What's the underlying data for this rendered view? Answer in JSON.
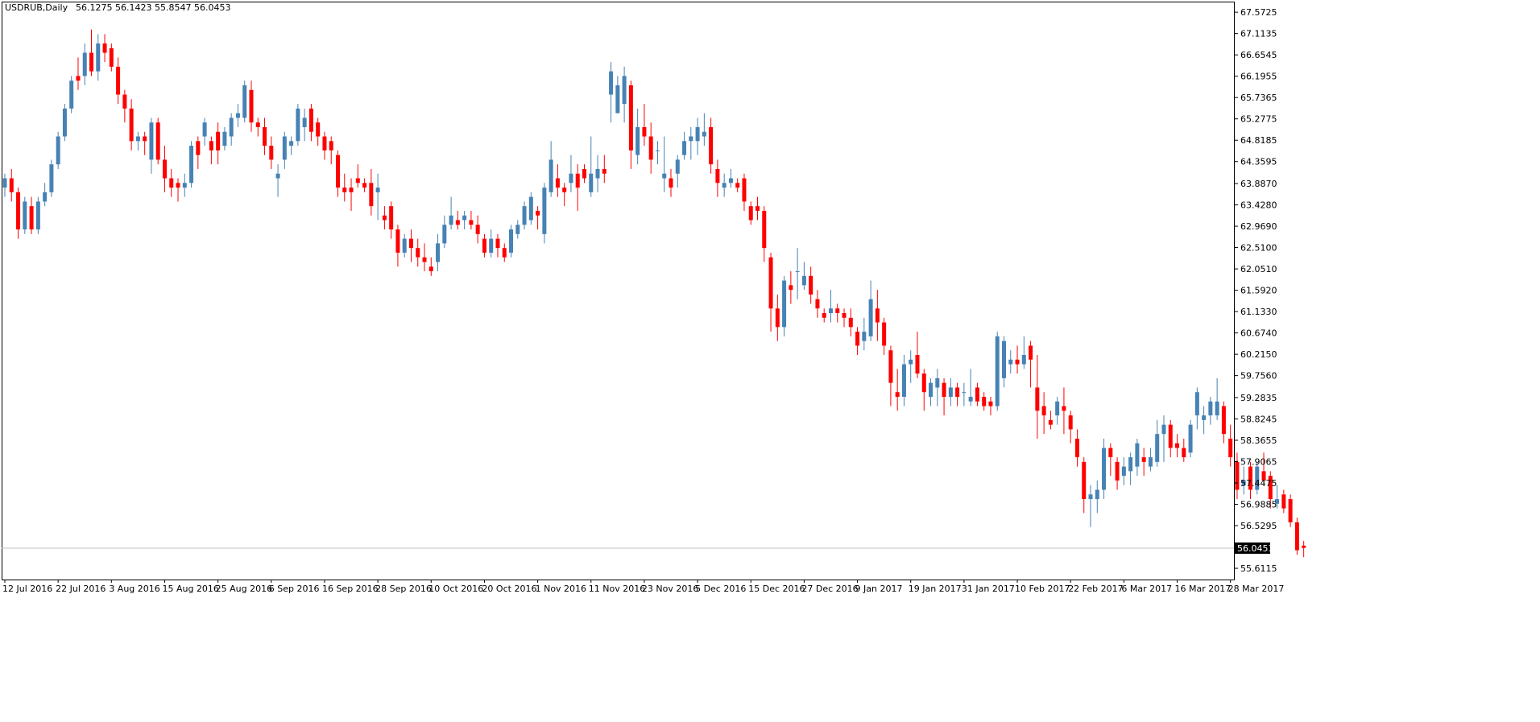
{
  "header": {
    "symbol": "USDRUB,Daily",
    "ohlc": "56.1275 56.1423 55.8547 56.0453"
  },
  "colors": {
    "bull": "#4682b4",
    "bear": "#ff0000",
    "axis": "#000000",
    "current_line": "#c0c0c0",
    "background": "#ffffff"
  },
  "chart_data": {
    "type": "candlestick",
    "title": "USDRUB,Daily",
    "ylim": [
      55.37,
      67.8
    ],
    "y_ticks": [
      "67.5725",
      "67.1135",
      "66.6545",
      "66.1955",
      "65.7365",
      "65.2775",
      "64.8185",
      "64.3595",
      "63.8870",
      "63.4280",
      "62.9690",
      "62.5100",
      "62.0510",
      "61.5920",
      "61.1330",
      "60.6740",
      "60.2150",
      "59.7560",
      "59.2835",
      "58.8245",
      "58.3655",
      "57.9065",
      "57.4475",
      "56.9885",
      "56.5295",
      "56.0453",
      "55.6115"
    ],
    "current_price": "56.0453",
    "x_labels": [
      {
        "index": 0,
        "label": "12 Jul 2016"
      },
      {
        "index": 8,
        "label": "22 Jul 2016"
      },
      {
        "index": 16,
        "label": "3 Aug 2016"
      },
      {
        "index": 24,
        "label": "15 Aug 2016"
      },
      {
        "index": 32,
        "label": "25 Aug 2016"
      },
      {
        "index": 40,
        "label": "6 Sep 2016"
      },
      {
        "index": 48,
        "label": "16 Sep 2016"
      },
      {
        "index": 56,
        "label": "28 Sep 2016"
      },
      {
        "index": 64,
        "label": "10 Oct 2016"
      },
      {
        "index": 72,
        "label": "20 Oct 2016"
      },
      {
        "index": 80,
        "label": "1 Nov 2016"
      },
      {
        "index": 88,
        "label": "11 Nov 2016"
      },
      {
        "index": 96,
        "label": "23 Nov 2016"
      },
      {
        "index": 104,
        "label": "5 Dec 2016"
      },
      {
        "index": 112,
        "label": "15 Dec 2016"
      },
      {
        "index": 120,
        "label": "27 Dec 2016"
      },
      {
        "index": 128,
        "label": "9 Jan 2017"
      },
      {
        "index": 136,
        "label": "19 Jan 2017"
      },
      {
        "index": 144,
        "label": "31 Jan 2017"
      },
      {
        "index": 152,
        "label": "10 Feb 2017"
      },
      {
        "index": 160,
        "label": "22 Feb 2017"
      },
      {
        "index": 168,
        "label": "6 Mar 2017"
      },
      {
        "index": 176,
        "label": "16 Mar 2017"
      },
      {
        "index": 184,
        "label": "28 Mar 2017"
      }
    ],
    "candles": [
      [
        63.8,
        64.1,
        63.6,
        64.0
      ],
      [
        64.0,
        64.2,
        63.5,
        63.7
      ],
      [
        63.7,
        63.8,
        62.7,
        62.9
      ],
      [
        62.9,
        63.6,
        62.8,
        63.5
      ],
      [
        63.4,
        63.6,
        62.8,
        62.9
      ],
      [
        62.9,
        63.6,
        62.8,
        63.5
      ],
      [
        63.5,
        63.9,
        63.4,
        63.7
      ],
      [
        63.7,
        64.4,
        63.6,
        64.3
      ],
      [
        64.3,
        65.0,
        64.2,
        64.9
      ],
      [
        64.9,
        65.6,
        64.8,
        65.5
      ],
      [
        65.5,
        66.2,
        65.4,
        66.1
      ],
      [
        66.2,
        66.6,
        65.9,
        66.1
      ],
      [
        66.2,
        66.9,
        66.0,
        66.7
      ],
      [
        66.7,
        67.2,
        66.2,
        66.3
      ],
      [
        66.3,
        67.1,
        66.1,
        66.9
      ],
      [
        66.9,
        67.1,
        66.5,
        66.7
      ],
      [
        66.8,
        66.9,
        66.3,
        66.4
      ],
      [
        66.4,
        66.6,
        65.6,
        65.8
      ],
      [
        65.8,
        65.9,
        65.2,
        65.5
      ],
      [
        65.5,
        65.7,
        64.6,
        64.8
      ],
      [
        64.8,
        65.0,
        64.6,
        64.9
      ],
      [
        64.9,
        65.0,
        64.5,
        64.8
      ],
      [
        64.4,
        65.3,
        64.1,
        65.2
      ],
      [
        65.2,
        65.3,
        64.3,
        64.4
      ],
      [
        64.4,
        64.7,
        63.7,
        64.0
      ],
      [
        64.0,
        64.2,
        63.6,
        63.8
      ],
      [
        63.9,
        64.0,
        63.5,
        63.8
      ],
      [
        63.8,
        64.1,
        63.6,
        63.9
      ],
      [
        63.9,
        64.8,
        63.8,
        64.7
      ],
      [
        64.8,
        64.9,
        64.2,
        64.5
      ],
      [
        64.9,
        65.3,
        64.7,
        65.2
      ],
      [
        64.8,
        64.9,
        64.3,
        64.6
      ],
      [
        65.0,
        65.2,
        64.3,
        64.6
      ],
      [
        64.7,
        65.1,
        64.6,
        65.0
      ],
      [
        64.9,
        65.4,
        64.7,
        65.3
      ],
      [
        65.3,
        65.6,
        65.1,
        65.4
      ],
      [
        65.3,
        66.1,
        65.2,
        66.0
      ],
      [
        65.9,
        66.1,
        65.0,
        65.2
      ],
      [
        65.2,
        65.3,
        64.9,
        65.1
      ],
      [
        65.1,
        65.3,
        64.5,
        64.7
      ],
      [
        64.7,
        64.9,
        64.2,
        64.4
      ],
      [
        64.0,
        64.3,
        63.6,
        64.1
      ],
      [
        64.4,
        65.0,
        64.2,
        64.9
      ],
      [
        64.7,
        64.9,
        64.5,
        64.8
      ],
      [
        64.8,
        65.6,
        64.7,
        65.5
      ],
      [
        65.1,
        65.5,
        64.8,
        65.3
      ],
      [
        65.5,
        65.6,
        64.8,
        65.0
      ],
      [
        65.2,
        65.3,
        64.7,
        64.9
      ],
      [
        64.9,
        65.0,
        64.4,
        64.6
      ],
      [
        64.8,
        64.9,
        64.3,
        64.6
      ],
      [
        64.5,
        64.6,
        63.6,
        63.8
      ],
      [
        63.8,
        64.1,
        63.5,
        63.7
      ],
      [
        63.8,
        64.0,
        63.3,
        63.7
      ],
      [
        64.0,
        64.3,
        63.8,
        63.9
      ],
      [
        63.9,
        64.0,
        63.7,
        63.8
      ],
      [
        63.9,
        64.2,
        63.2,
        63.4
      ],
      [
        63.7,
        64.1,
        63.1,
        63.8
      ],
      [
        63.2,
        63.4,
        62.9,
        63.1
      ],
      [
        63.4,
        63.5,
        62.7,
        62.9
      ],
      [
        62.9,
        63.0,
        62.1,
        62.4
      ],
      [
        62.4,
        62.8,
        62.3,
        62.7
      ],
      [
        62.7,
        62.9,
        62.2,
        62.5
      ],
      [
        62.5,
        62.7,
        62.1,
        62.3
      ],
      [
        62.3,
        62.6,
        62.0,
        62.2
      ],
      [
        62.1,
        62.3,
        61.9,
        62.0
      ],
      [
        62.2,
        62.8,
        62.0,
        62.6
      ],
      [
        62.6,
        63.2,
        62.5,
        63.0
      ],
      [
        63.0,
        63.6,
        62.9,
        63.2
      ],
      [
        63.1,
        63.3,
        62.9,
        63.0
      ],
      [
        63.1,
        63.3,
        62.9,
        63.2
      ],
      [
        63.1,
        63.3,
        62.9,
        63.0
      ],
      [
        63.0,
        63.2,
        62.6,
        62.8
      ],
      [
        62.7,
        62.8,
        62.3,
        62.4
      ],
      [
        62.4,
        62.9,
        62.3,
        62.7
      ],
      [
        62.7,
        62.8,
        62.3,
        62.5
      ],
      [
        62.5,
        62.6,
        62.2,
        62.3
      ],
      [
        62.4,
        63.0,
        62.3,
        62.9
      ],
      [
        62.8,
        63.1,
        62.7,
        63.0
      ],
      [
        63.0,
        63.5,
        62.9,
        63.4
      ],
      [
        63.1,
        63.7,
        63.0,
        63.6
      ],
      [
        63.3,
        63.4,
        62.9,
        63.2
      ],
      [
        62.8,
        63.9,
        62.6,
        63.8
      ],
      [
        63.7,
        64.8,
        63.6,
        64.4
      ],
      [
        64.0,
        64.3,
        63.6,
        63.8
      ],
      [
        63.8,
        63.9,
        63.4,
        63.7
      ],
      [
        63.9,
        64.5,
        63.7,
        64.1
      ],
      [
        64.1,
        64.3,
        63.3,
        63.8
      ],
      [
        64.2,
        64.3,
        63.9,
        64.0
      ],
      [
        63.7,
        64.9,
        63.6,
        64.1
      ],
      [
        64.0,
        64.5,
        63.7,
        64.2
      ],
      [
        64.2,
        64.5,
        63.9,
        64.1
      ],
      [
        65.8,
        66.5,
        65.2,
        66.3
      ],
      [
        65.4,
        66.2,
        65.4,
        66.0
      ],
      [
        65.6,
        66.4,
        65.2,
        66.2
      ],
      [
        66.0,
        66.1,
        64.2,
        64.6
      ],
      [
        64.5,
        65.5,
        64.3,
        65.1
      ],
      [
        65.1,
        65.6,
        64.7,
        64.9
      ],
      [
        64.9,
        65.2,
        64.1,
        64.4
      ],
      [
        64.6,
        64.8,
        64.3,
        64.6
      ],
      [
        64.0,
        64.9,
        63.7,
        64.1
      ],
      [
        64.0,
        64.2,
        63.6,
        63.8
      ],
      [
        64.1,
        64.5,
        63.8,
        64.4
      ],
      [
        64.5,
        65.0,
        64.4,
        64.8
      ],
      [
        64.8,
        65.1,
        64.4,
        64.9
      ],
      [
        64.8,
        65.3,
        64.5,
        65.1
      ],
      [
        64.9,
        65.4,
        64.7,
        65.0
      ],
      [
        65.1,
        65.3,
        64.1,
        64.3
      ],
      [
        64.2,
        64.4,
        63.6,
        63.9
      ],
      [
        63.8,
        64.1,
        63.6,
        63.9
      ],
      [
        63.9,
        64.2,
        63.8,
        64.0
      ],
      [
        63.9,
        64.0,
        63.7,
        63.8
      ],
      [
        64.0,
        64.1,
        63.3,
        63.5
      ],
      [
        63.4,
        63.5,
        63.0,
        63.1
      ],
      [
        63.4,
        63.6,
        63.1,
        63.3
      ],
      [
        63.3,
        63.4,
        62.2,
        62.5
      ],
      [
        62.3,
        62.4,
        60.7,
        61.2
      ],
      [
        61.2,
        61.5,
        60.5,
        60.8
      ],
      [
        60.8,
        61.9,
        60.6,
        61.8
      ],
      [
        61.7,
        62.0,
        61.3,
        61.6
      ],
      [
        62.0,
        62.5,
        61.4,
        62.0
      ],
      [
        61.7,
        62.2,
        61.6,
        61.9
      ],
      [
        61.9,
        62.1,
        61.3,
        61.5
      ],
      [
        61.4,
        61.6,
        61.0,
        61.2
      ],
      [
        61.1,
        61.2,
        60.9,
        61.0
      ],
      [
        61.1,
        61.6,
        60.9,
        61.2
      ],
      [
        61.2,
        61.3,
        60.9,
        61.1
      ],
      [
        61.1,
        61.2,
        60.8,
        61.0
      ],
      [
        61.0,
        61.2,
        60.6,
        60.8
      ],
      [
        60.7,
        60.8,
        60.2,
        60.4
      ],
      [
        60.5,
        61.0,
        60.3,
        60.7
      ],
      [
        60.6,
        61.8,
        60.5,
        61.4
      ],
      [
        61.2,
        61.6,
        60.5,
        60.9
      ],
      [
        60.9,
        61.0,
        60.2,
        60.4
      ],
      [
        60.3,
        60.4,
        59.1,
        59.6
      ],
      [
        59.4,
        59.9,
        59.0,
        59.3
      ],
      [
        59.3,
        60.2,
        59.1,
        60.0
      ],
      [
        60.0,
        60.3,
        59.6,
        60.1
      ],
      [
        60.2,
        60.7,
        59.7,
        59.8
      ],
      [
        59.8,
        59.9,
        59.0,
        59.4
      ],
      [
        59.3,
        59.7,
        59.1,
        59.6
      ],
      [
        59.5,
        59.9,
        59.1,
        59.7
      ],
      [
        59.6,
        59.7,
        58.9,
        59.3
      ],
      [
        59.3,
        59.7,
        59.1,
        59.5
      ],
      [
        59.5,
        59.6,
        59.1,
        59.3
      ],
      [
        59.4,
        59.6,
        59.1,
        59.4
      ],
      [
        59.2,
        59.9,
        59.1,
        59.3
      ],
      [
        59.5,
        59.6,
        59.1,
        59.2
      ],
      [
        59.3,
        59.4,
        59.0,
        59.1
      ],
      [
        59.2,
        59.3,
        58.9,
        59.1
      ],
      [
        59.1,
        60.7,
        59.0,
        60.6
      ],
      [
        59.7,
        60.6,
        59.5,
        60.5
      ],
      [
        60.0,
        60.3,
        59.8,
        60.1
      ],
      [
        60.1,
        60.4,
        59.8,
        60.0
      ],
      [
        60.0,
        60.6,
        59.9,
        60.2
      ],
      [
        60.4,
        60.5,
        59.5,
        60.1
      ],
      [
        59.5,
        60.2,
        58.4,
        59.0
      ],
      [
        59.1,
        59.4,
        58.5,
        58.9
      ],
      [
        58.8,
        59.0,
        58.6,
        58.7
      ],
      [
        58.9,
        59.3,
        58.7,
        59.2
      ],
      [
        59.1,
        59.5,
        58.5,
        59.0
      ],
      [
        58.9,
        59.0,
        58.3,
        58.6
      ],
      [
        58.4,
        58.6,
        57.8,
        58.0
      ],
      [
        57.9,
        58.0,
        56.8,
        57.1
      ],
      [
        57.1,
        57.4,
        56.5,
        57.2
      ],
      [
        57.1,
        57.5,
        56.8,
        57.3
      ],
      [
        57.3,
        58.4,
        57.1,
        58.2
      ],
      [
        58.2,
        58.3,
        57.6,
        58.0
      ],
      [
        57.9,
        58.0,
        57.3,
        57.5
      ],
      [
        57.6,
        58.0,
        57.4,
        57.8
      ],
      [
        57.7,
        58.1,
        57.4,
        58.0
      ],
      [
        57.8,
        58.4,
        57.6,
        58.3
      ],
      [
        58.0,
        58.2,
        57.6,
        57.9
      ],
      [
        57.8,
        58.2,
        57.7,
        58.0
      ],
      [
        57.9,
        58.8,
        57.8,
        58.5
      ],
      [
        58.5,
        58.9,
        57.9,
        58.7
      ],
      [
        58.7,
        58.8,
        58.0,
        58.2
      ],
      [
        58.3,
        58.5,
        58.0,
        58.2
      ],
      [
        58.2,
        58.4,
        57.9,
        58.0
      ],
      [
        58.1,
        58.8,
        58.0,
        58.7
      ],
      [
        58.9,
        59.5,
        58.6,
        59.4
      ],
      [
        58.8,
        59.1,
        58.5,
        58.9
      ],
      [
        58.9,
        59.3,
        58.7,
        59.2
      ],
      [
        58.9,
        59.7,
        58.8,
        59.2
      ],
      [
        59.1,
        59.2,
        58.3,
        58.5
      ],
      [
        58.4,
        58.7,
        57.8,
        58.0
      ],
      [
        57.9,
        58.1,
        57.1,
        57.3
      ],
      [
        57.4,
        57.8,
        57.2,
        57.5
      ],
      [
        57.8,
        57.9,
        57.1,
        57.3
      ],
      [
        57.3,
        57.9,
        57.2,
        57.8
      ],
      [
        57.7,
        58.1,
        57.4,
        57.5
      ],
      [
        57.6,
        57.7,
        56.9,
        57.1
      ],
      [
        57.0,
        57.4,
        56.9,
        57.1
      ],
      [
        57.2,
        57.3,
        56.8,
        56.9
      ],
      [
        57.1,
        57.2,
        56.5,
        56.6
      ],
      [
        56.6,
        56.7,
        55.9,
        56.0
      ],
      [
        56.1,
        56.2,
        55.85,
        56.05
      ]
    ]
  }
}
